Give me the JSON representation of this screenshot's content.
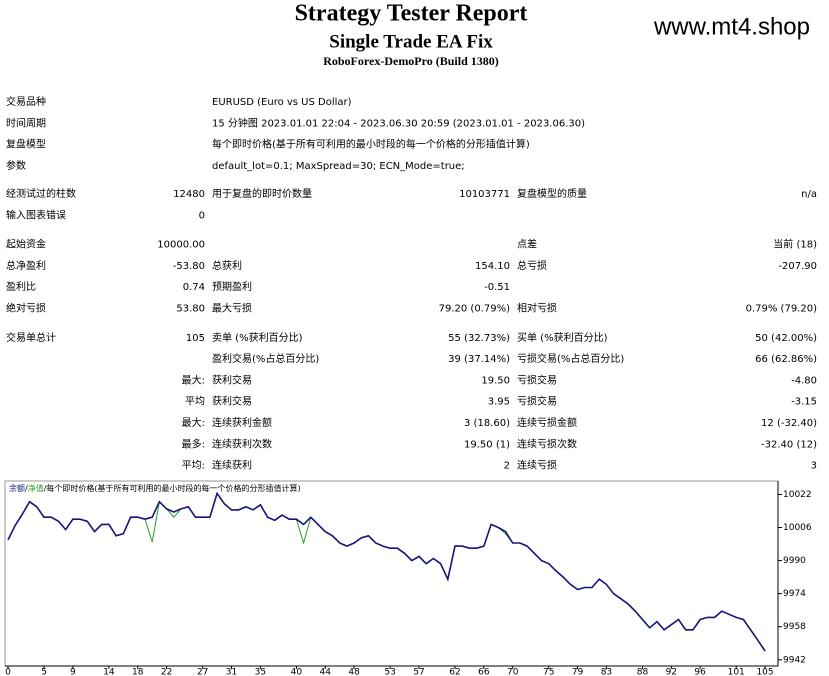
{
  "header": {
    "title": "Strategy Tester Report",
    "subtitle": "Single Trade EA Fix",
    "server": "RoboForex-DemoPro (Build 1380)",
    "watermark": "www.mt4.shop"
  },
  "info": [
    [
      "交易品种",
      "EURUSD (Euro vs US Dollar)"
    ],
    [
      "时间周期",
      "15 分钟图 2023.01.01 22:04 - 2023.06.30 20:59 (2023.01.01 - 2023.06.30)"
    ],
    [
      "复盘模型",
      "每个即时价格(基于所有可利用的最小时段的每一个价格的分形插值计算)"
    ],
    [
      "参数",
      "default_lot=0.1; MaxSpread=30; ECN_Mode=true;"
    ]
  ],
  "stats": [
    [
      [
        "经测试过的柱数",
        "12480",
        "用于复盘的即时价数量",
        "10103771",
        "复盘模型的质量",
        "n/a"
      ],
      [
        "输入图表错误",
        "0"
      ]
    ],
    [
      [
        "起始资金",
        "10000.00",
        null,
        null,
        "点差",
        "当前 (18)"
      ],
      [
        "总净盈利",
        "-53.80",
        "总获利",
        "154.10",
        "总亏损",
        "-207.90"
      ],
      [
        "盈利比",
        "0.74",
        "预期盈利",
        "-0.51"
      ],
      [
        "绝对亏损",
        "53.80",
        "最大亏损",
        "79.20 (0.79%)",
        "相对亏损",
        "0.79% (79.20)"
      ]
    ],
    [
      [
        "交易单总计",
        "105",
        "卖单 (%获利百分比)",
        "55 (32.73%)",
        "买单 (%获利百分比)",
        "50 (42.00%)"
      ],
      [
        null,
        null,
        "盈利交易(%占总百分比)",
        "39 (37.14%)",
        "亏损交易(%占总百分比)",
        "66 (62.86%)"
      ],
      [
        null,
        "最大:",
        "获利交易",
        "19.50",
        "亏损交易",
        "-4.80"
      ],
      [
        null,
        "平均",
        "获利交易",
        "3.95",
        "亏损交易",
        "-3.15"
      ],
      [
        null,
        "最大:",
        "连续获利金额",
        "3 (18.60)",
        "连续亏损金额",
        "12 (-32.40)"
      ],
      [
        null,
        "最多:",
        "连续获利次数",
        "19.50 (1)",
        "连续亏损次数",
        "-32.40 (12)"
      ],
      [
        null,
        "平均:",
        "连续获利",
        "2",
        "连续亏损",
        "3"
      ]
    ]
  ],
  "chart_data": {
    "type": "line",
    "legend_separator": "/",
    "legend_note": "每个即时价格(基于所有可利用的最小时段的每一个价格的分形插值计算)",
    "x": [
      0,
      1,
      2,
      3,
      4,
      5,
      6,
      7,
      8,
      9,
      10,
      11,
      12,
      13,
      14,
      15,
      16,
      17,
      18,
      19,
      20,
      21,
      22,
      23,
      24,
      25,
      26,
      27,
      28,
      29,
      30,
      31,
      32,
      33,
      34,
      35,
      36,
      37,
      38,
      39,
      40,
      41,
      42,
      43,
      44,
      45,
      46,
      47,
      48,
      49,
      50,
      51,
      52,
      53,
      54,
      55,
      56,
      57,
      58,
      59,
      60,
      61,
      62,
      63,
      64,
      65,
      66,
      67,
      68,
      69,
      70,
      71,
      72,
      73,
      74,
      75,
      76,
      77,
      78,
      79,
      80,
      81,
      82,
      83,
      84,
      85,
      86,
      87,
      88,
      89,
      90,
      91,
      92,
      93,
      94,
      95,
      96,
      97,
      98,
      99,
      100,
      101,
      102,
      103,
      104,
      105
    ],
    "series": [
      {
        "name": "净值",
        "color": "#2e9b2e",
        "values": [
          10000,
          10007,
          10012.5,
          10018.5,
          10016,
          10011,
          10011,
          10009,
          10005,
          10010,
          10010,
          10009,
          10004,
          10007.5,
          10007.5,
          10002,
          10003,
          10011,
          10011,
          10010,
          9999,
          10018.5,
          10015,
          10011,
          10015,
          10016,
          10011,
          10011,
          10011,
          10022.5,
          10017.5,
          10014.5,
          10014.5,
          10016,
          10014.5,
          10017,
          10011,
          10009.5,
          10012,
          10010,
          10010,
          9998.5,
          10011,
          10007.5,
          10004,
          10002,
          9998.5,
          9997,
          9998.5,
          10001,
          10002,
          9998.5,
          9997,
          9996,
          9996,
          9993.5,
          9990,
          9992,
          9988.5,
          9991,
          9988.5,
          9981,
          9997,
          9997,
          9996,
          9996,
          9997,
          10007.5,
          10006,
          10003,
          9998.5,
          9998.5,
          9997,
          9993.5,
          9990,
          9988.5,
          9985,
          9982,
          9978.5,
          9976,
          9977,
          9977,
          9981,
          9978.5,
          9974,
          9971.5,
          9969,
          9965.5,
          9961.5,
          9957.5,
          9960.5,
          9956.5,
          9959,
          9961.5,
          9956.5,
          9956.5,
          9961.5,
          9962.5,
          9962.5,
          9965.5,
          9964,
          9962.5,
          9961.5,
          9956.5,
          9951.5,
          9946.2
        ]
      },
      {
        "name": "余额",
        "color": "#15157a",
        "values": [
          10000,
          10007,
          10012.5,
          10018.5,
          10016,
          10011,
          10011,
          10009,
          10005,
          10010,
          10010,
          10009,
          10004,
          10007.5,
          10007.5,
          10002,
          10003,
          10011,
          10011,
          10010,
          10011,
          10018.5,
          10015,
          10013.5,
          10015,
          10016,
          10011,
          10011,
          10011,
          10022.5,
          10017.5,
          10014.5,
          10014.5,
          10016,
          10014.5,
          10017,
          10011,
          10009.5,
          10012,
          10010,
          10010,
          10007.5,
          10011,
          10007.5,
          10004,
          10002,
          9998.5,
          9997,
          9998.5,
          10001,
          10002,
          9998.5,
          9997,
          9996,
          9996,
          9993.5,
          9990,
          9992,
          9988.5,
          9991,
          9988.5,
          9981,
          9997,
          9997,
          9996,
          9996,
          9997,
          10007.5,
          10006,
          10004,
          9998.5,
          9998.5,
          9997,
          9993.5,
          9990,
          9988.5,
          9985,
          9982,
          9978.5,
          9976,
          9977,
          9977,
          9981,
          9978.5,
          9974,
          9971.5,
          9969,
          9965.5,
          9961.5,
          9957.5,
          9960.5,
          9956.5,
          9959,
          9961.5,
          9956.5,
          9956.5,
          9961.5,
          9962.5,
          9962.5,
          9965.5,
          9964,
          9962.5,
          9961.5,
          9956.5,
          9951.5,
          9946.2
        ]
      }
    ],
    "xlim": [
      0,
      107
    ],
    "xticks": [
      0,
      5,
      9,
      14,
      18,
      22,
      27,
      31,
      35,
      40,
      44,
      48,
      53,
      57,
      62,
      66,
      70,
      75,
      79,
      83,
      88,
      92,
      96,
      101,
      105
    ],
    "ylim": [
      9939,
      10028.5
    ],
    "yticks": [
      10022,
      10006,
      9990,
      9974,
      9958,
      9942
    ],
    "grid": false
  }
}
